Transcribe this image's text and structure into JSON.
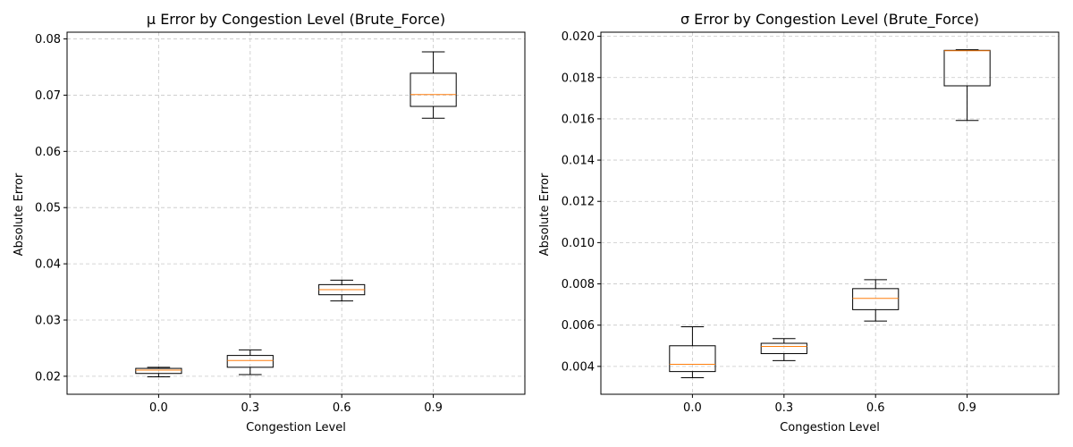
{
  "chart_data": [
    {
      "type": "box",
      "title": "μ Error by Congestion Level (Brute_Force)",
      "xlabel": "Congestion Level",
      "ylabel": "Absolute Error",
      "categories": [
        "0.0",
        "0.3",
        "0.6",
        "0.9"
      ],
      "ylim": [
        0.0168,
        0.0812
      ],
      "yticks": [
        "0.02",
        "0.03",
        "0.04",
        "0.05",
        "0.06",
        "0.07",
        "0.08"
      ],
      "ytick_values": [
        0.02,
        0.03,
        0.04,
        0.05,
        0.06,
        0.07,
        0.08
      ],
      "grid": true,
      "boxes": [
        {
          "category": "0.0",
          "whisker_low": 0.0199,
          "q1": 0.0205,
          "median": 0.0211,
          "q3": 0.0214,
          "whisker_high": 0.0216
        },
        {
          "category": "0.3",
          "whisker_low": 0.0203,
          "q1": 0.0216,
          "median": 0.0228,
          "q3": 0.0237,
          "whisker_high": 0.0247
        },
        {
          "category": "0.6",
          "whisker_low": 0.0334,
          "q1": 0.0345,
          "median": 0.0354,
          "q3": 0.0363,
          "whisker_high": 0.0371
        },
        {
          "category": "0.9",
          "whisker_low": 0.0659,
          "q1": 0.068,
          "median": 0.0701,
          "q3": 0.0739,
          "whisker_high": 0.0777
        }
      ]
    },
    {
      "type": "box",
      "title": "σ Error by Congestion Level (Brute_Force)",
      "xlabel": "Congestion Level",
      "ylabel": "Absolute Error",
      "categories": [
        "0.0",
        "0.3",
        "0.6",
        "0.9"
      ],
      "ylim": [
        0.00265,
        0.0202
      ],
      "yticks": [
        "0.004",
        "0.006",
        "0.008",
        "0.010",
        "0.012",
        "0.014",
        "0.016",
        "0.018",
        "0.020"
      ],
      "ytick_values": [
        0.004,
        0.006,
        0.008,
        0.01,
        0.012,
        0.014,
        0.016,
        0.018,
        0.02
      ],
      "grid": true,
      "boxes": [
        {
          "category": "0.0",
          "whisker_low": 0.00345,
          "q1": 0.00375,
          "median": 0.0041,
          "q3": 0.005,
          "whisker_high": 0.00592
        },
        {
          "category": "0.3",
          "whisker_low": 0.00428,
          "q1": 0.00462,
          "median": 0.00497,
          "q3": 0.00512,
          "whisker_high": 0.00535
        },
        {
          "category": "0.6",
          "whisker_low": 0.0062,
          "q1": 0.00675,
          "median": 0.0073,
          "q3": 0.00777,
          "whisker_high": 0.0082
        },
        {
          "category": "0.9",
          "whisker_low": 0.01592,
          "q1": 0.0176,
          "median": 0.0193,
          "q3": 0.01932,
          "whisker_high": 0.01935
        }
      ]
    }
  ],
  "colors": {
    "box": "#000000",
    "median": "#ff7f0e",
    "grid": "#b0b0b0",
    "axes": "#000000"
  }
}
